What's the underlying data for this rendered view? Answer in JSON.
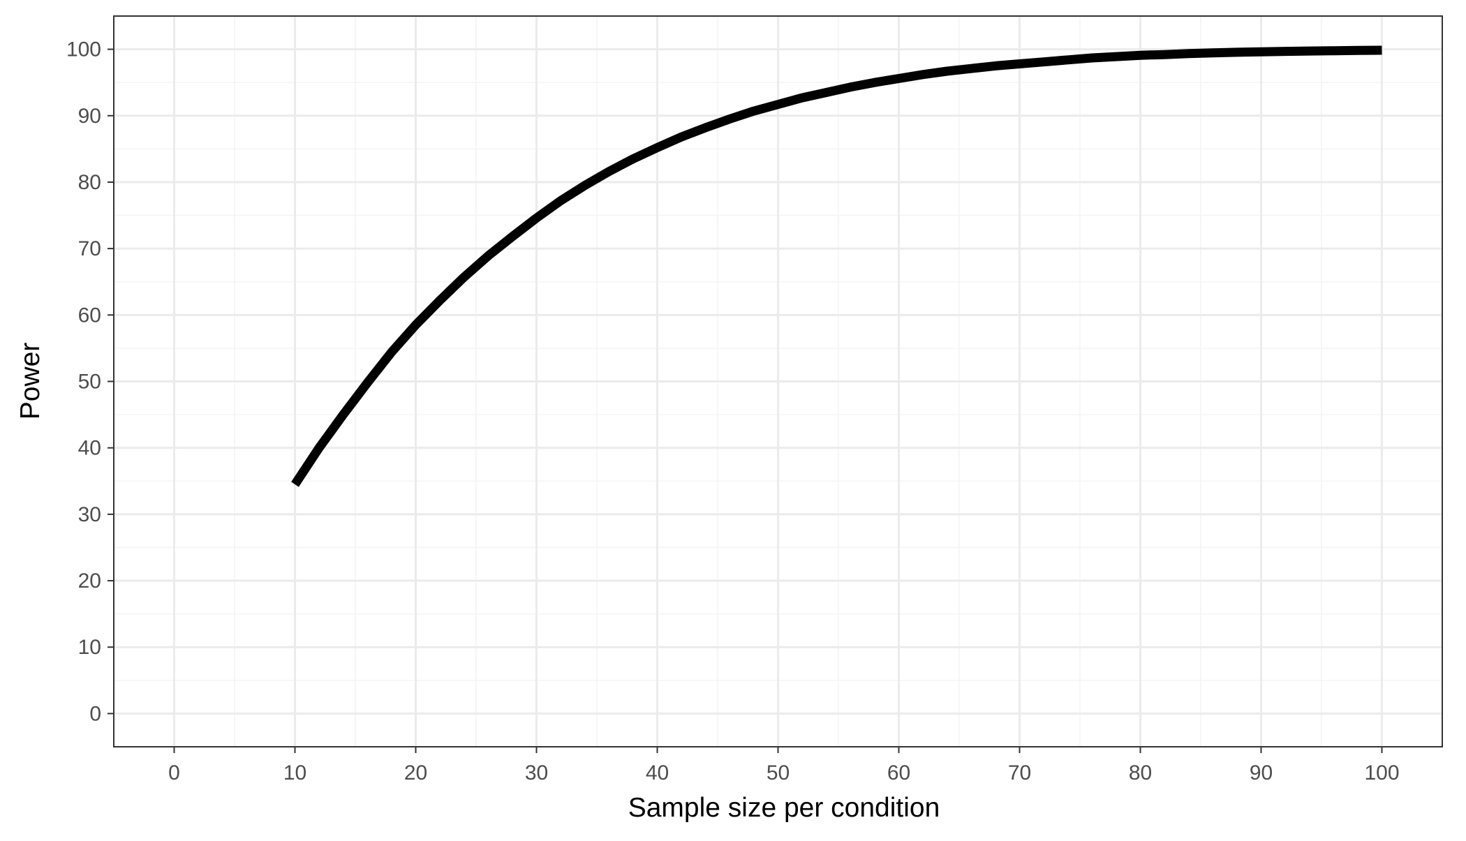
{
  "chart_data": {
    "type": "line",
    "title": "",
    "xlabel": "Sample size per condition",
    "ylabel": "Power",
    "xlim": [
      -5,
      105
    ],
    "ylim": [
      -5,
      105
    ],
    "x_ticks": [
      0,
      10,
      20,
      30,
      40,
      50,
      60,
      70,
      80,
      90,
      100
    ],
    "y_ticks": [
      0,
      10,
      20,
      30,
      40,
      50,
      60,
      70,
      80,
      90,
      100
    ],
    "grid": true,
    "legend": "none",
    "series": [
      {
        "x": [
          10,
          12,
          14,
          16,
          18,
          20,
          22,
          24,
          26,
          28,
          30,
          32,
          34,
          36,
          38,
          40,
          42,
          44,
          46,
          48,
          50,
          52,
          54,
          56,
          58,
          60,
          62,
          64,
          66,
          68,
          70,
          72,
          74,
          76,
          78,
          80,
          82,
          84,
          86,
          88,
          90,
          92,
          94,
          96,
          98,
          100
        ],
        "y": [
          34.5,
          40,
          45,
          49.8,
          54.4,
          58.5,
          62.2,
          65.7,
          68.9,
          71.8,
          74.6,
          77.2,
          79.5,
          81.6,
          83.5,
          85.2,
          86.8,
          88.2,
          89.5,
          90.7,
          91.7,
          92.7,
          93.5,
          94.3,
          95,
          95.6,
          96.2,
          96.7,
          97.1,
          97.5,
          97.8,
          98.1,
          98.4,
          98.7,
          98.9,
          99.1,
          99.2,
          99.35,
          99.45,
          99.55,
          99.62,
          99.68,
          99.74,
          99.78,
          99.82,
          99.85
        ]
      }
    ],
    "colors": {
      "line": "#000000",
      "grid_major": "#ebebeb",
      "grid_minor": "#f4f4f4",
      "panel_border": "#333333",
      "tick_label": "#4d4d4d"
    }
  }
}
